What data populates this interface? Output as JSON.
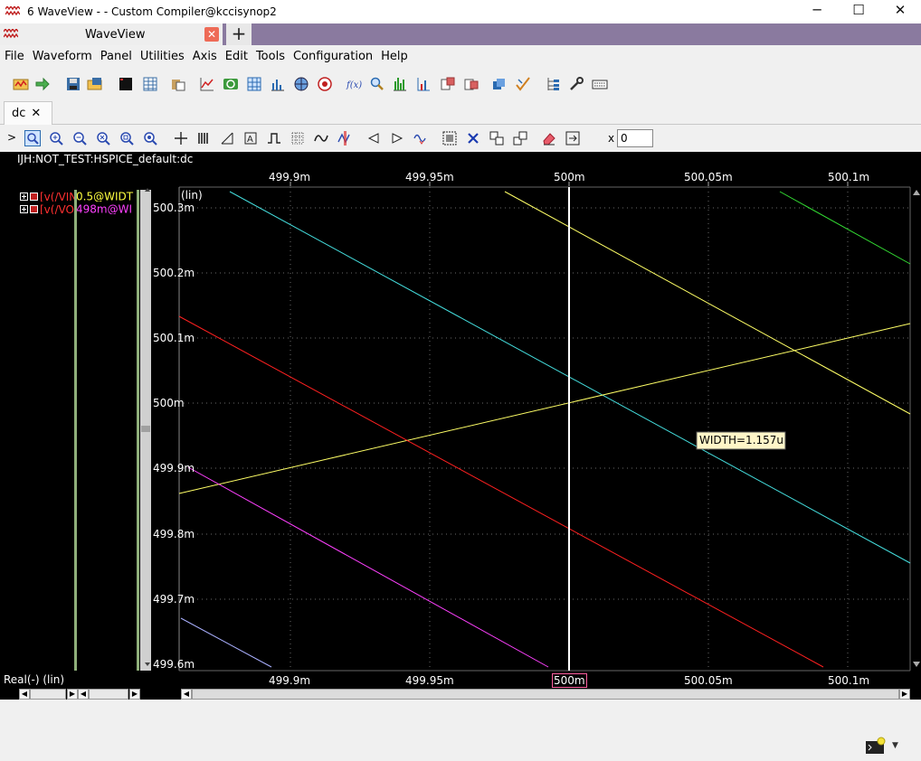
{
  "window": {
    "title": "6 WaveView -  - Custom Compiler@kccisynop2",
    "controls": [
      "─",
      "☐",
      "✕"
    ]
  },
  "app_tab": {
    "label": "WaveView",
    "close": "✕",
    "new_tab": "+"
  },
  "menu": [
    "File",
    "Waveform",
    "Panel",
    "Utilities",
    "Axis",
    "Edit",
    "Tools",
    "Configuration",
    "Help"
  ],
  "toolbar_icons": [
    "open-waveform-icon",
    "go-arrow-icon",
    "save-icon",
    "load-icon",
    "terminal-icon",
    "table-icon",
    "copy-icon",
    "plot-line-icon",
    "refresh-icon",
    "grid-table-icon",
    "bar-chart-icon",
    "globe-icon",
    "target-icon",
    "function-icon",
    "search-icon",
    "histogram-icon",
    "stats-icon",
    "export-icon",
    "import-icon",
    "layers-icon",
    "check-icon",
    "hierarchy-icon",
    "wrench-icon",
    "keyboard-icon"
  ],
  "doc_tab": {
    "label": "dc",
    "close": "✕"
  },
  "panel_toolbar": {
    "expand": ">",
    "x_label": "x",
    "x_value": "0"
  },
  "panel": {
    "header": "IJH:NOT_TEST:HSPICE_default:dc",
    "yscale_label": "(lin)",
    "bottom_label": "Real(-) (lin)",
    "cursor_label": "500m",
    "measurement": "WIDTH=1.157u",
    "signals": [
      {
        "name": "[v(/VIN",
        "value": "0.5@WIDT",
        "name_color": "#ff3030",
        "value_color": "#ffff40"
      },
      {
        "name": "[v(/VO",
        "value": "498m@WI",
        "name_color": "#ff3030",
        "value_color": "#ff40ff"
      }
    ],
    "x_ticks": [
      "499.9m",
      "499.95m",
      "500m",
      "500.05m",
      "500.1m"
    ],
    "y_ticks": [
      "500.3m",
      "500.2m",
      "500.1m",
      "500m",
      "499.9m",
      "499.8m",
      "499.7m",
      "499.6m"
    ]
  },
  "colors": {
    "cyan": "#44dddd",
    "yellow": "#ffff66",
    "red": "#ff2020",
    "magenta": "#ff40ff",
    "green": "#33dd33",
    "lavender": "#aab0ff"
  }
}
